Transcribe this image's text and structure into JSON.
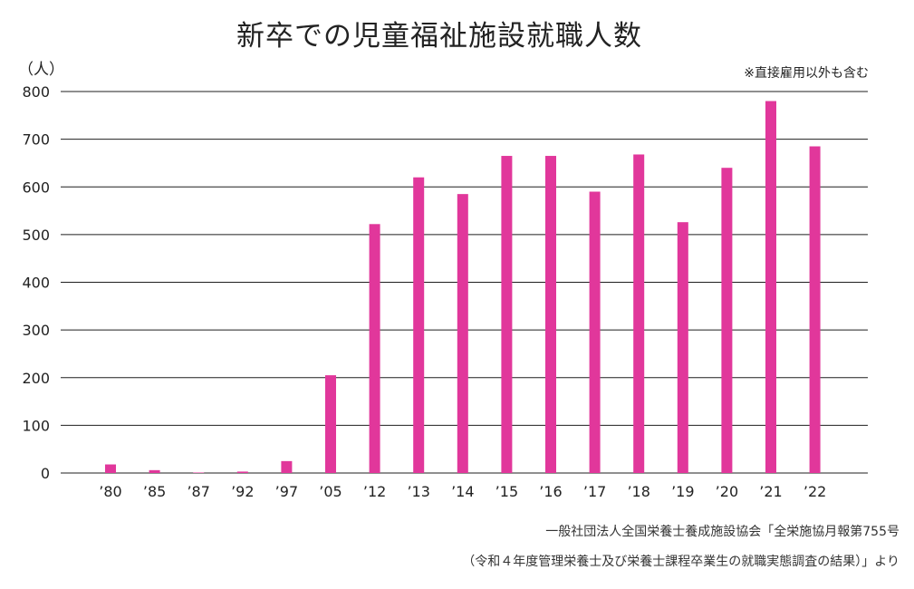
{
  "chart_data": {
    "type": "bar",
    "title": "新卒での児童福祉施設就職人数",
    "ylabel": "（人）",
    "xlabel": "",
    "note": "※直接雇用以外も含む",
    "categories": [
      "’80",
      "’85",
      "’87",
      "’92",
      "’97",
      "’05",
      "’12",
      "’13",
      "’14",
      "’15",
      "’16",
      "’17",
      "’18",
      "’19",
      "’20",
      "’21",
      "’22"
    ],
    "values": [
      18,
      6,
      1,
      3,
      25,
      205,
      522,
      620,
      585,
      665,
      665,
      590,
      668,
      526,
      640,
      780,
      685
    ],
    "ylim": [
      0,
      800
    ],
    "yticks": [
      0,
      100,
      200,
      300,
      400,
      500,
      600,
      700,
      800
    ],
    "bar_color": "#e1379b",
    "grid": true
  },
  "source": {
    "line1": "一般社団法人全国栄養士養成施設協会「全栄施協月報第755号",
    "line2": "（令和４年度管理栄養士及び栄養士課程卒業生の就職実態調査の結果）」より"
  }
}
